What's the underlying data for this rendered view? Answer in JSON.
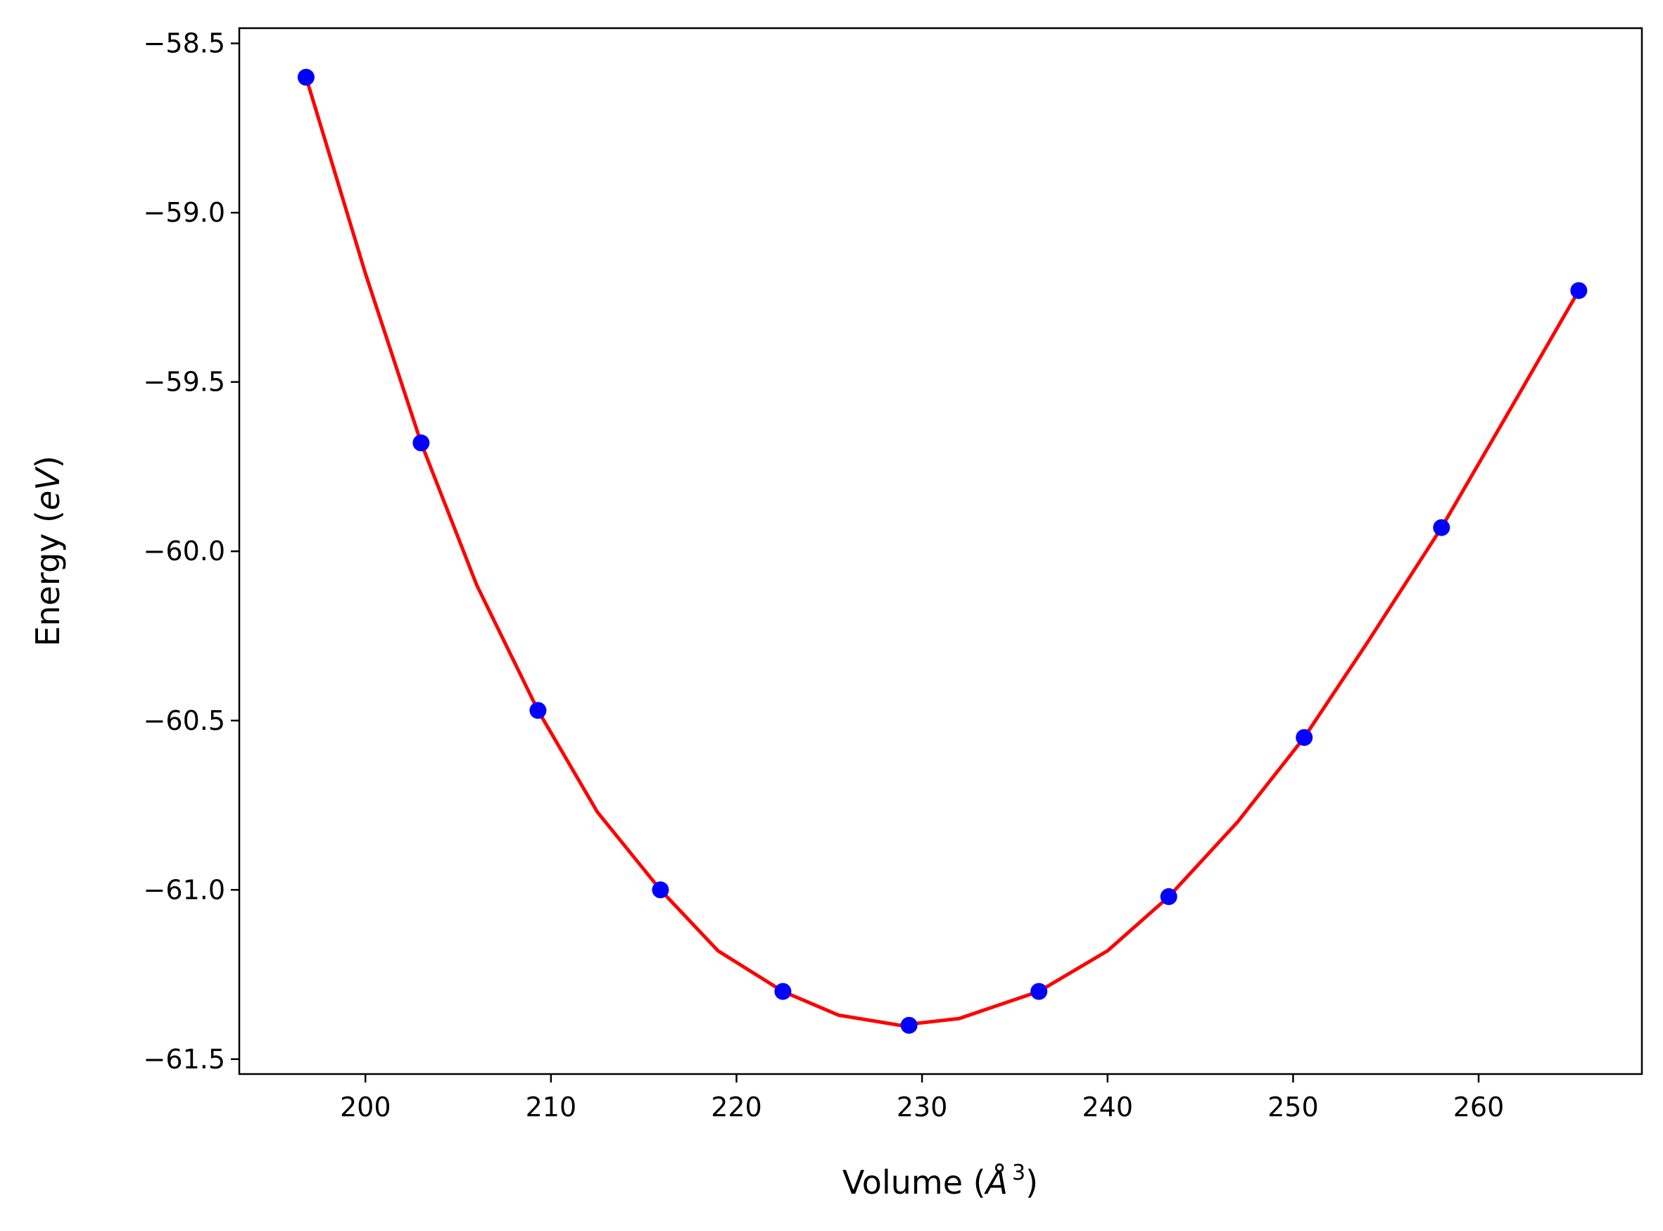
{
  "chart_data": {
    "type": "scatter",
    "xlabel": "Volume (",
    "xlabel_symbol": "Å",
    "xlabel_exponent": "3",
    "xlabel_close": ")",
    "ylabel": "Energy (",
    "ylabel_unit": "eV",
    "ylabel_close": ")",
    "xlim": [
      193.2,
      268.8
    ],
    "ylim": [
      -61.544,
      -58.455
    ],
    "xticks": [
      200,
      210,
      220,
      230,
      240,
      250,
      260
    ],
    "xtick_labels": [
      "200",
      "210",
      "220",
      "230",
      "240",
      "250",
      "260"
    ],
    "yticks": [
      -58.5,
      -59.0,
      -59.5,
      -60.0,
      -60.5,
      -61.0,
      -61.5
    ],
    "ytick_labels": [
      "−58.5",
      "−59.0",
      "−59.5",
      "−60.0",
      "−60.5",
      "−61.0",
      "−61.5"
    ],
    "grid": false,
    "series": [
      {
        "kind": "points",
        "color": "#0000ff",
        "x": [
          196.8,
          203.0,
          209.3,
          215.9,
          222.5,
          229.3,
          236.3,
          243.3,
          250.6,
          258.0,
          265.4
        ],
        "y": [
          -58.6,
          -59.68,
          -60.47,
          -61.0,
          -61.3,
          -61.4,
          -61.3,
          -61.02,
          -60.55,
          -59.93,
          -59.23
        ]
      },
      {
        "kind": "fit",
        "color": "#ff0000",
        "x": [
          196.8,
          200.0,
          203.0,
          206.0,
          209.3,
          212.5,
          215.9,
          219.0,
          222.5,
          225.5,
          228.8,
          232.0,
          236.3,
          240.0,
          243.3,
          247.0,
          250.6,
          254.0,
          258.0,
          261.5,
          265.4
        ],
        "y": [
          -58.6,
          -59.18,
          -59.68,
          -60.1,
          -60.47,
          -60.77,
          -61.0,
          -61.18,
          -61.3,
          -61.37,
          -61.4,
          -61.38,
          -61.3,
          -61.18,
          -61.02,
          -60.8,
          -60.55,
          -60.27,
          -59.93,
          -59.6,
          -59.23
        ]
      }
    ]
  }
}
